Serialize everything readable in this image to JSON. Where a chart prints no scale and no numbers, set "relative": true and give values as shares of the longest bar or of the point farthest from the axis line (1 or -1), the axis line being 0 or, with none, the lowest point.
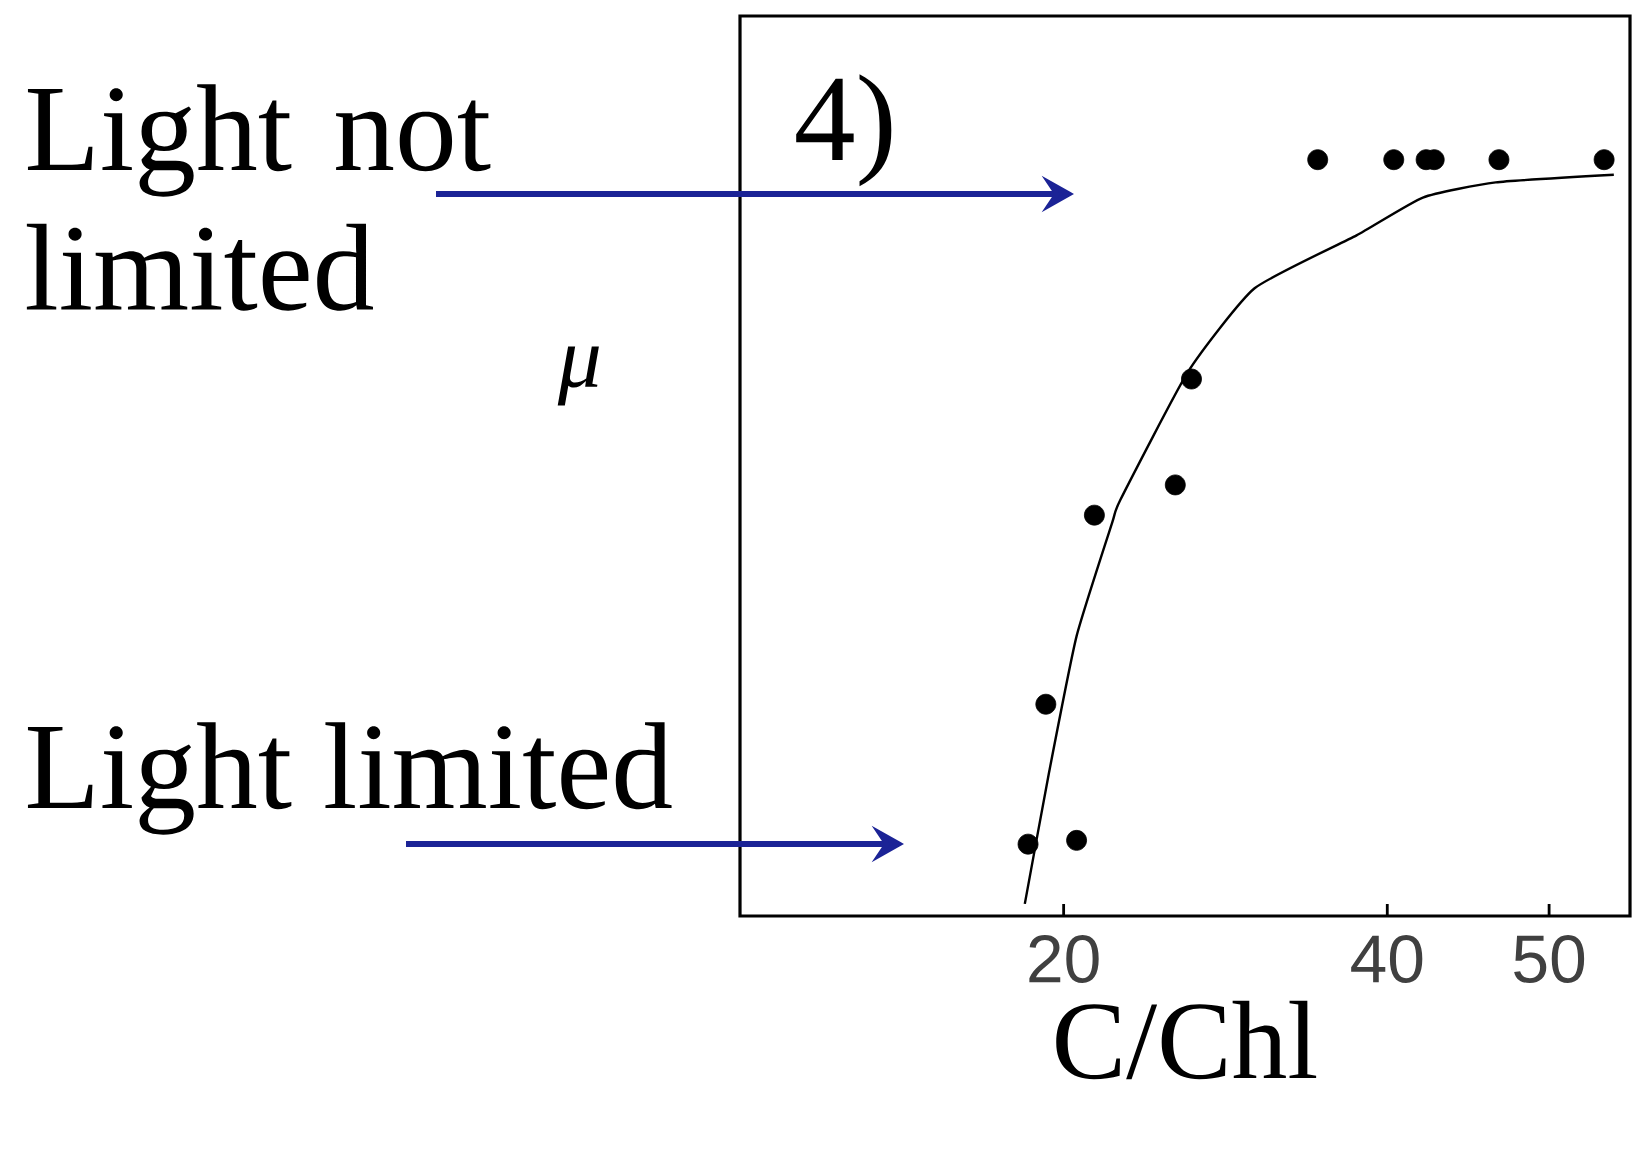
{
  "chart_data": {
    "type": "scatter",
    "title": "4)",
    "xlabel": "C/Chl",
    "ylabel": "μ",
    "relative": true,
    "xlim": [
      0,
      55
    ],
    "xticks": [
      20,
      40,
      50
    ],
    "marker": "circle",
    "series": [
      {
        "color": "#000000",
        "x": [
          17.8,
          18.9,
          20.8,
          21.9,
          26.9,
          27.9,
          35.7,
          40.4,
          42.4,
          42.9,
          46.9,
          53.4
        ],
        "values": [
          0.095,
          0.28,
          0.1,
          0.53,
          0.57,
          0.71,
          1.0,
          1.0,
          1.0,
          1.0,
          1.0,
          1.0
        ]
      },
      {
        "type": "line",
        "color": "#000000",
        "marker": "none",
        "x": [
          17.6,
          19.1,
          20.8,
          23.0,
          23.5,
          27.7,
          31.8,
          38.1,
          42.2,
          46.7,
          54.0
        ],
        "values": [
          0.016,
          0.19,
          0.37,
          0.52,
          0.55,
          0.72,
          0.83,
          0.9,
          0.95,
          0.97,
          0.98
        ]
      }
    ],
    "annotations": [
      "Light not limited",
      "Light limited"
    ]
  }
}
